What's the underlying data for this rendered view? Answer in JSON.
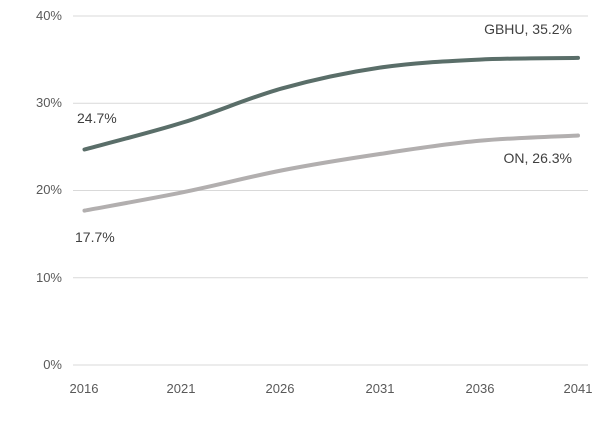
{
  "chart_data": {
    "type": "line",
    "title": "",
    "xlabel": "",
    "ylabel": "",
    "x": [
      2016,
      2021,
      2026,
      2031,
      2036,
      2041
    ],
    "xtick_labels": [
      "2016",
      "2021",
      "2026",
      "2031",
      "2036",
      "2041"
    ],
    "ytick_labels_top_to_bottom": [
      "40%",
      "30%",
      "20%",
      "10%",
      "0%"
    ],
    "ylim": [
      0,
      40
    ],
    "ytick_step": 10,
    "grid": "horizontal",
    "legend": "inline-end-labels",
    "series": [
      {
        "name": "GBHU",
        "values": [
          24.7,
          27.8,
          31.7,
          34.1,
          35.0,
          35.2
        ],
        "color": "#5A6E69",
        "start_label": "24.7%",
        "end_label": "GBHU, 35.2%"
      },
      {
        "name": "ON",
        "values": [
          17.7,
          19.8,
          22.3,
          24.2,
          25.7,
          26.3
        ],
        "color": "#B2AFAF",
        "start_label": "17.7%",
        "end_label": "ON, 26.3%"
      }
    ],
    "colors": {
      "gridline": "#D9D9D9",
      "axis_text": "#595959",
      "annotation_text": "#404040",
      "background": "#FFFFFF"
    }
  }
}
